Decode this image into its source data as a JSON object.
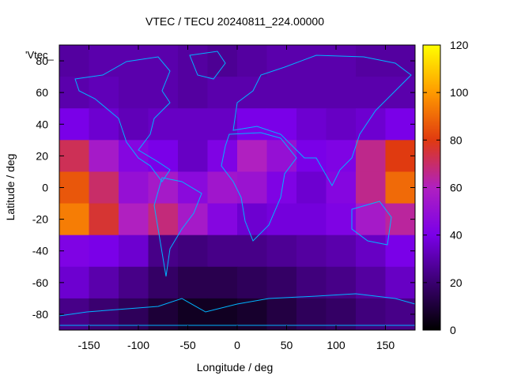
{
  "chart_data": {
    "type": "heatmap",
    "title": "VTEC / TECU 20240811_224.00000",
    "xlabel": "Longitude / deg",
    "ylabel": "Latitude / deg",
    "series_label": "'Vtec_",
    "xlim": [
      -180,
      180
    ],
    "ylim": [
      -90,
      90
    ],
    "xticks": [
      -150,
      -100,
      -50,
      0,
      50,
      100,
      150
    ],
    "yticks": [
      -80,
      -60,
      -40,
      -20,
      0,
      20,
      40,
      60,
      80
    ],
    "colorbar": {
      "min": 0,
      "max": 120,
      "ticks": [
        0,
        20,
        40,
        60,
        80,
        100,
        120
      ],
      "colors": [
        "#000000",
        "#3a0070",
        "#7a00e8",
        "#b020c0",
        "#e03a10",
        "#ff9a00",
        "#ffff00"
      ]
    },
    "x": [
      -165,
      -135,
      -105,
      -75,
      -45,
      -15,
      15,
      45,
      75,
      105,
      135,
      165
    ],
    "y": [
      80,
      60,
      40,
      20,
      0,
      -20,
      -40,
      -60,
      -80
    ],
    "z": [
      [
        28,
        30,
        30,
        30,
        28,
        26,
        28,
        30,
        30,
        30,
        28,
        28
      ],
      [
        30,
        32,
        30,
        30,
        28,
        30,
        30,
        30,
        30,
        30,
        30,
        30
      ],
      [
        40,
        36,
        32,
        34,
        34,
        34,
        40,
        40,
        36,
        34,
        36,
        40
      ],
      [
        72,
        56,
        44,
        40,
        34,
        42,
        60,
        50,
        40,
        42,
        66,
        80
      ],
      [
        86,
        70,
        50,
        56,
        46,
        54,
        52,
        42,
        36,
        44,
        66,
        90
      ],
      [
        94,
        76,
        60,
        68,
        56,
        44,
        36,
        38,
        38,
        42,
        56,
        64
      ],
      [
        42,
        40,
        36,
        24,
        22,
        24,
        24,
        26,
        28,
        30,
        34,
        40
      ],
      [
        36,
        30,
        24,
        18,
        14,
        14,
        16,
        18,
        22,
        24,
        28,
        34
      ],
      [
        24,
        20,
        16,
        10,
        6,
        6,
        8,
        12,
        16,
        18,
        22,
        24
      ]
    ]
  }
}
